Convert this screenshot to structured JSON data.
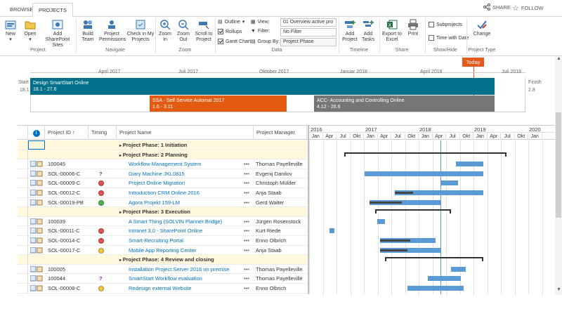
{
  "tabs": {
    "browse": "BROWSE",
    "projects": "PROJECTS"
  },
  "top": {
    "share": "SHARE",
    "follow": "FOLLOW"
  },
  "ribbon": {
    "buttons": {
      "new": "New",
      "open": "Open",
      "add_sp": "Add SharePoint Sites",
      "build_team": "Build Team",
      "perms": "Project Permissions",
      "checkin": "Check in My Projects",
      "zoom_in": "Zoom In",
      "zoom_out": "Zoom Out",
      "scroll": "Scroll to Project",
      "add_project": "Add Project",
      "add_tasks": "Add Tasks",
      "export": "Export to Excel",
      "print": "Print",
      "change": "Change"
    },
    "outline": "Outline",
    "rollups": "Rollups",
    "gantt": "Gantt Chart",
    "view_label": "View:",
    "filter_label": "Filter:",
    "group_label": "Group By:",
    "view_value": "01 Overview active pro",
    "filter_value": "No Filter",
    "group_value": "Project Phase",
    "subprojects": "Subprojects",
    "time_with_date": "Time with Date",
    "groups": {
      "project": "Project",
      "navigate": "Navigate",
      "zoom": "Zoom",
      "data": "Data",
      "timeline": "Timeline",
      "share": "Share",
      "showhide": "Show/Hide",
      "ptype": "Project Type"
    }
  },
  "timeline": {
    "today": "Today",
    "start_label": "Start",
    "start_date": "18.1",
    "finish_label": "Finish",
    "finish_date": "2.8",
    "months": [
      "April 2017",
      "Juli 2017",
      "Oktober 2017",
      "Januar 2018",
      "April 2018",
      "Juli 2018"
    ],
    "bar_main": {
      "name": "Design SmartStart Online",
      "dates": "18.1 - 27.6"
    },
    "bar_a": {
      "name": "SSA - Self Service Automat 2017",
      "dates": "1.6 - 3.11"
    },
    "bar_b": {
      "name": "ACC- Accounting and Controlling Online",
      "dates": "4.12 - 26.6"
    }
  },
  "grid": {
    "columns": {
      "pid": "Project ID",
      "timing": "Timing",
      "pname": "Project Name",
      "pm": "Project Manager"
    },
    "years": [
      "2016",
      "2017",
      "2018",
      "2019",
      "2020"
    ],
    "quarters": [
      "Jan",
      "Apr",
      "Jul",
      "Okt",
      "Jan",
      "Apr",
      "Jul",
      "Okt",
      "Jan",
      "Apr",
      "Jul",
      "Okt",
      "Jan",
      "Apr",
      "Jul",
      "Okt",
      "Jan"
    ],
    "rows": [
      {
        "type": "group",
        "name": "Project Phase: 1 Initiation"
      },
      {
        "type": "group",
        "name": "Project Phase: 2 Planning"
      },
      {
        "type": "task",
        "id": "100045",
        "timing": "",
        "name": "Workflow Management System",
        "pm": "Thomas Payelleville",
        "status": "none"
      },
      {
        "type": "task",
        "id": "SOL-00006-C",
        "timing": "",
        "name": "Diary Machine JKL0815",
        "pm": "Evgenij Danilov",
        "status": "unknown"
      },
      {
        "type": "task",
        "id": "SOL-00009-C",
        "timing": "",
        "name": "Project Online Migration",
        "pm": "Christoph Mülder",
        "status": "red"
      },
      {
        "type": "task",
        "id": "SOL-00012-C",
        "timing": "",
        "name": "Introduction CRM Online 2016",
        "pm": "Anja Staab",
        "status": "red"
      },
      {
        "type": "task",
        "id": "SOL-00019-PB",
        "timing": "",
        "name": "Agora Projekt 159-LM",
        "pm": "Gerd Walter",
        "status": "green"
      },
      {
        "type": "group",
        "name": "Project Phase: 3 Execution"
      },
      {
        "type": "task",
        "id": "100039",
        "timing": "",
        "name": "A Smart Thing (SOLVIN Planner Bridge)",
        "pm": "Jürgen Rosenstock",
        "status": "none"
      },
      {
        "type": "task",
        "id": "SOL-00011-C",
        "timing": "",
        "name": "Intranet 3,0 - SharePoint Online",
        "pm": "Kurt Riede",
        "status": "red"
      },
      {
        "type": "task",
        "id": "SOL-00014-C",
        "timing": "",
        "name": "Smart-Recruiting Portal",
        "pm": "Enno Olbrich",
        "status": "red"
      },
      {
        "type": "task",
        "id": "SOL-00017-C",
        "timing": "",
        "name": "Mobile App Reporting Center",
        "pm": "Anja Staab",
        "status": "yellow"
      },
      {
        "type": "group",
        "name": "Project Phase: 4 Review and closing"
      },
      {
        "type": "task",
        "id": "100005",
        "timing": "",
        "name": "Installation Project Server 2016 on premise",
        "pm": "Thomas Payelleville",
        "status": "none"
      },
      {
        "type": "task",
        "id": "100044",
        "timing": "",
        "name": "SmartStart Workflow evaluation",
        "pm": "Thomas Payelleville",
        "status": "unknown"
      },
      {
        "type": "task",
        "id": "SOL-00008-C",
        "timing": "",
        "name": "Redesign external Website",
        "pm": "Enno Olbrich",
        "status": "yellow"
      }
    ]
  },
  "gantt": {
    "bars": [
      {
        "row": 1,
        "summary": true,
        "s": 0.14,
        "e": 0.78
      },
      {
        "row": 2,
        "s": 0.58,
        "e": 0.69
      },
      {
        "row": 3,
        "s": 0.22,
        "e": 0.69,
        "unknown": true
      },
      {
        "row": 4,
        "s": 0.52,
        "e": 0.59
      },
      {
        "row": 5,
        "s": 0.34,
        "e": 0.69,
        "p": 0.2
      },
      {
        "row": 6,
        "s": 0.24,
        "e": 0.52,
        "p": 0.45
      },
      {
        "row": 7,
        "summary": true,
        "s": 0.26,
        "e": 0.56
      },
      {
        "row": 8,
        "s": 0.27,
        "e": 0.3
      },
      {
        "row": 9,
        "s": 0.08,
        "e": 0.1
      },
      {
        "row": 10,
        "s": 0.28,
        "e": 0.5,
        "p": 0.55
      },
      {
        "row": 11,
        "s": 0.28,
        "e": 0.52,
        "p": 0.45
      },
      {
        "row": 12,
        "summary": true,
        "s": 0.3,
        "e": 0.69
      },
      {
        "row": 13,
        "s": 0.56,
        "e": 0.62
      },
      {
        "row": 14,
        "s": 0.47,
        "e": 0.6
      },
      {
        "row": 15,
        "s": 0.39,
        "e": 0.61
      }
    ]
  },
  "colors": {
    "teal": "#00708b",
    "orange": "#e35b10",
    "gray": "#767676",
    "today": "#e55a1a",
    "blue": "#5b9bd5"
  }
}
